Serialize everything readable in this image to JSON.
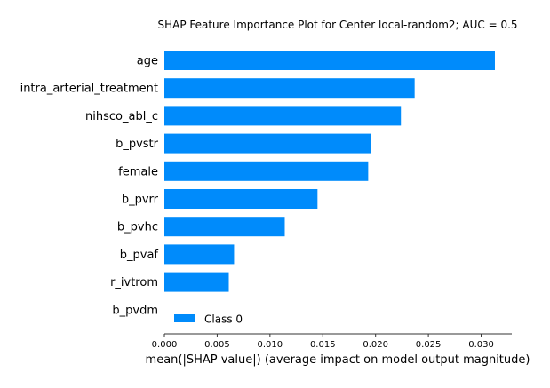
{
  "chart_data": {
    "type": "bar",
    "orientation": "horizontal",
    "title": "SHAP Feature Importance Plot for Center local-random2; AUC = 0.5",
    "xlabel": "mean(|SHAP value|) (average impact on model output magnitude)",
    "ylabel": "",
    "categories": [
      "age",
      "intra_arterial_treatment",
      "nihsco_abl_c",
      "b_pvstr",
      "female",
      "b_pvrr",
      "b_pvhc",
      "b_pvaf",
      "r_ivtrom",
      "b_pvdm"
    ],
    "series": [
      {
        "name": "Class 0",
        "color": "#008bfb",
        "values": [
          0.0313,
          0.0237,
          0.0224,
          0.0196,
          0.0193,
          0.0145,
          0.0114,
          0.0066,
          0.0061,
          0.0
        ]
      }
    ],
    "xlim": [
      0,
      0.0329
    ],
    "xticks": [
      "0.000",
      "0.005",
      "0.010",
      "0.015",
      "0.020",
      "0.025",
      "0.030"
    ],
    "xtick_values": [
      0,
      0.005,
      0.01,
      0.015,
      0.02,
      0.025,
      0.03
    ],
    "grid": false,
    "legend": {
      "position": "lower-right",
      "entries": [
        "Class 0"
      ]
    }
  }
}
